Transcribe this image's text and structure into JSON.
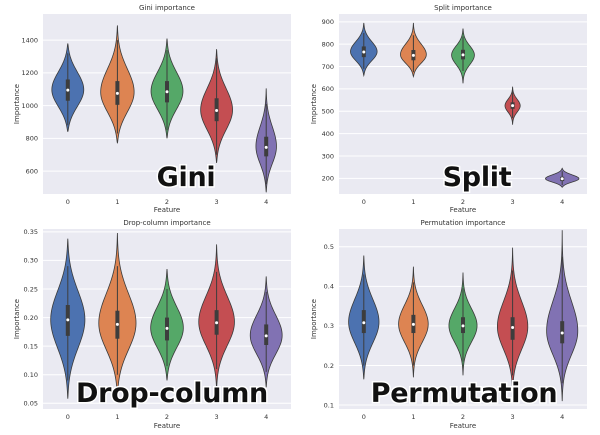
{
  "palette": [
    "#4c72b0",
    "#dd8452",
    "#55a868",
    "#c44e52",
    "#8172b3"
  ],
  "chart_data": [
    {
      "type": "violin",
      "title": "Gini importance",
      "xlabel": "Feature",
      "ylabel": "Importance",
      "overlay_label": "Gini",
      "categories": [
        "0",
        "1",
        "2",
        "3",
        "4"
      ],
      "ylim": [
        460,
        1560
      ],
      "yticks": [
        600,
        800,
        1000,
        1200,
        1400
      ],
      "ytick_labels": [
        "600",
        "800",
        "1000",
        "1200",
        "1400"
      ],
      "median": [
        1095,
        1075,
        1085,
        970,
        745
      ],
      "q1": [
        1030,
        1005,
        1020,
        905,
        690
      ],
      "q3": [
        1160,
        1150,
        1150,
        1045,
        810
      ],
      "whisker_low": [
        880,
        830,
        850,
        700,
        520
      ],
      "whisker_high": [
        1320,
        1400,
        1340,
        1290,
        1010
      ],
      "min": [
        840,
        770,
        800,
        650,
        470
      ],
      "max": [
        1380,
        1490,
        1410,
        1345,
        1105
      ],
      "spread": [
        0.84,
        0.88,
        0.84,
        0.84,
        0.54
      ]
    },
    {
      "type": "violin",
      "title": "Split importance",
      "xlabel": "Feature",
      "ylabel": "Importance",
      "overlay_label": "Split",
      "categories": [
        "0",
        "1",
        "2",
        "3",
        "4"
      ],
      "ylim": [
        130,
        935
      ],
      "yticks": [
        200,
        300,
        400,
        500,
        600,
        700,
        800,
        900
      ],
      "ytick_labels": [
        "200",
        "300",
        "400",
        "500",
        "600",
        "700",
        "800",
        "900"
      ],
      "median": [
        765,
        750,
        752,
        525,
        198
      ],
      "q1": [
        742,
        728,
        732,
        511,
        188
      ],
      "q3": [
        790,
        774,
        775,
        540,
        207
      ],
      "whisker_low": [
        690,
        675,
        680,
        470,
        170
      ],
      "whisker_high": [
        850,
        840,
        835,
        590,
        232
      ],
      "min": [
        660,
        655,
        625,
        440,
        160
      ],
      "max": [
        895,
        895,
        870,
        610,
        245
      ],
      "spread": [
        0.7,
        0.68,
        0.6,
        0.4,
        0.88
      ]
    },
    {
      "type": "violin",
      "title": "Drop-column importance",
      "xlabel": "Feature",
      "ylabel": "Importance",
      "overlay_label": "Drop-column",
      "categories": [
        "0",
        "1",
        "2",
        "3",
        "4"
      ],
      "ylim": [
        0.04,
        0.355
      ],
      "yticks": [
        0.05,
        0.1,
        0.15,
        0.2,
        0.25,
        0.3,
        0.35
      ],
      "ytick_labels": [
        "0.05",
        "0.10",
        "0.15",
        "0.20",
        "0.25",
        "0.30",
        "0.35"
      ],
      "median": [
        0.196,
        0.188,
        0.181,
        0.191,
        0.168
      ],
      "q1": [
        0.168,
        0.163,
        0.16,
        0.17,
        0.152
      ],
      "q3": [
        0.222,
        0.212,
        0.2,
        0.213,
        0.188
      ],
      "whisker_low": [
        0.09,
        0.1,
        0.115,
        0.11,
        0.105
      ],
      "whisker_high": [
        0.29,
        0.29,
        0.25,
        0.28,
        0.245
      ],
      "min": [
        0.058,
        0.06,
        0.09,
        0.075,
        0.078
      ],
      "max": [
        0.338,
        0.348,
        0.285,
        0.328,
        0.272
      ],
      "spread": [
        0.9,
        0.98,
        0.86,
        0.94,
        0.84
      ]
    },
    {
      "type": "violin",
      "title": "Permutation importance",
      "xlabel": "Feature",
      "ylabel": "Importance",
      "overlay_label": "Permutation",
      "categories": [
        "0",
        "1",
        "2",
        "3",
        "4"
      ],
      "ylim": [
        0.09,
        0.545
      ],
      "yticks": [
        0.1,
        0.2,
        0.3,
        0.4,
        0.5
      ],
      "ytick_labels": [
        "0.1",
        "0.2",
        "0.3",
        "0.4",
        "0.5"
      ],
      "median": [
        0.308,
        0.304,
        0.3,
        0.296,
        0.282
      ],
      "q1": [
        0.282,
        0.282,
        0.282,
        0.265,
        0.256
      ],
      "q3": [
        0.34,
        0.328,
        0.322,
        0.322,
        0.312
      ],
      "whisker_low": [
        0.2,
        0.2,
        0.21,
        0.175,
        0.155
      ],
      "whisker_high": [
        0.43,
        0.41,
        0.395,
        0.44,
        0.475
      ],
      "min": [
        0.165,
        0.17,
        0.175,
        0.13,
        0.11
      ],
      "max": [
        0.478,
        0.45,
        0.435,
        0.498,
        0.542
      ],
      "spread": [
        0.8,
        0.78,
        0.74,
        0.8,
        0.82
      ]
    }
  ]
}
